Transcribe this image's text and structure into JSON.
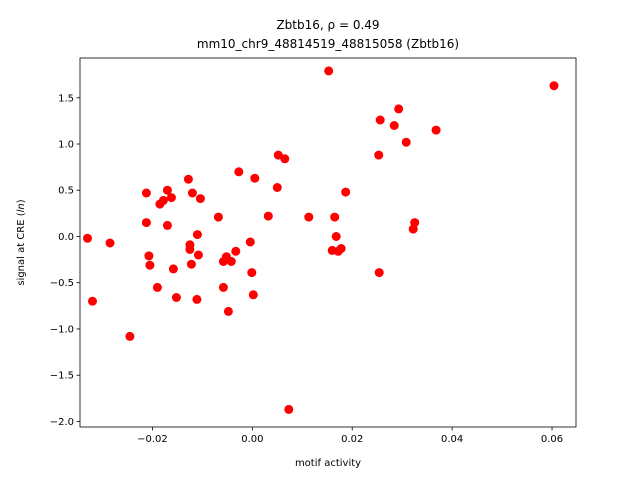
{
  "chart_data": {
    "type": "scatter",
    "title_line1": "Zbtb16, ρ = 0.49",
    "title_line2": "mm10_chr9_48814519_48815058 (Zbtb16)",
    "xlabel": "motif activity",
    "ylabel": "signal at CRE (ln)",
    "xlim": [
      -0.0345,
      0.0648
    ],
    "ylim": [
      -2.06,
      1.93
    ],
    "xticks": [
      -0.02,
      0.0,
      0.02,
      0.04,
      0.06
    ],
    "xtick_labels": [
      "−0.02",
      "0.00",
      "0.02",
      "0.04",
      "0.06"
    ],
    "yticks": [
      -2.0,
      -1.5,
      -1.0,
      -0.5,
      0.0,
      0.5,
      1.0,
      1.5
    ],
    "ytick_labels": [
      "−2.0",
      "−1.5",
      "−1.0",
      "−0.5",
      "0.0",
      "0.5",
      "1.0",
      "1.5"
    ],
    "grid": false,
    "marker_color": "#ff0000",
    "points": [
      [
        -0.033,
        -0.02
      ],
      [
        -0.032,
        -0.7
      ],
      [
        -0.0285,
        -0.07
      ],
      [
        -0.0245,
        -1.08
      ],
      [
        -0.0212,
        0.47
      ],
      [
        -0.0212,
        0.15
      ],
      [
        -0.0207,
        -0.21
      ],
      [
        -0.0205,
        -0.31
      ],
      [
        -0.019,
        -0.55
      ],
      [
        -0.0185,
        0.35
      ],
      [
        -0.0178,
        0.39
      ],
      [
        -0.017,
        0.5
      ],
      [
        -0.017,
        0.12
      ],
      [
        -0.0162,
        0.42
      ],
      [
        -0.0158,
        -0.35
      ],
      [
        -0.0152,
        -0.66
      ],
      [
        -0.0128,
        0.62
      ],
      [
        -0.0125,
        -0.09
      ],
      [
        -0.0125,
        -0.14
      ],
      [
        -0.0122,
        -0.3
      ],
      [
        -0.012,
        0.47
      ],
      [
        -0.0111,
        -0.68
      ],
      [
        -0.011,
        0.02
      ],
      [
        -0.0108,
        -0.2
      ],
      [
        -0.0104,
        0.41
      ],
      [
        -0.0068,
        0.21
      ],
      [
        -0.0058,
        -0.27
      ],
      [
        -0.0058,
        -0.55
      ],
      [
        -0.0052,
        -0.22
      ],
      [
        -0.0048,
        -0.81
      ],
      [
        -0.0042,
        -0.27
      ],
      [
        -0.0033,
        -0.16
      ],
      [
        -0.0027,
        0.7
      ],
      [
        -0.0004,
        -0.06
      ],
      [
        -0.0001,
        -0.39
      ],
      [
        0.0002,
        -0.63
      ],
      [
        0.0005,
        0.63
      ],
      [
        0.0032,
        0.22
      ],
      [
        0.005,
        0.53
      ],
      [
        0.0052,
        0.88
      ],
      [
        0.0065,
        0.84
      ],
      [
        0.0073,
        -1.87
      ],
      [
        0.0113,
        0.21
      ],
      [
        0.0153,
        1.79
      ],
      [
        0.016,
        -0.15
      ],
      [
        0.0165,
        0.21
      ],
      [
        0.0168,
        0.0
      ],
      [
        0.0172,
        -0.16
      ],
      [
        0.0178,
        -0.13
      ],
      [
        0.0187,
        0.48
      ],
      [
        0.0253,
        0.88
      ],
      [
        0.0254,
        -0.39
      ],
      [
        0.0256,
        1.26
      ],
      [
        0.0284,
        1.2
      ],
      [
        0.0293,
        1.38
      ],
      [
        0.0308,
        1.02
      ],
      [
        0.0322,
        0.08
      ],
      [
        0.0325,
        0.15
      ],
      [
        0.0368,
        1.15
      ],
      [
        0.0604,
        1.63
      ]
    ]
  }
}
